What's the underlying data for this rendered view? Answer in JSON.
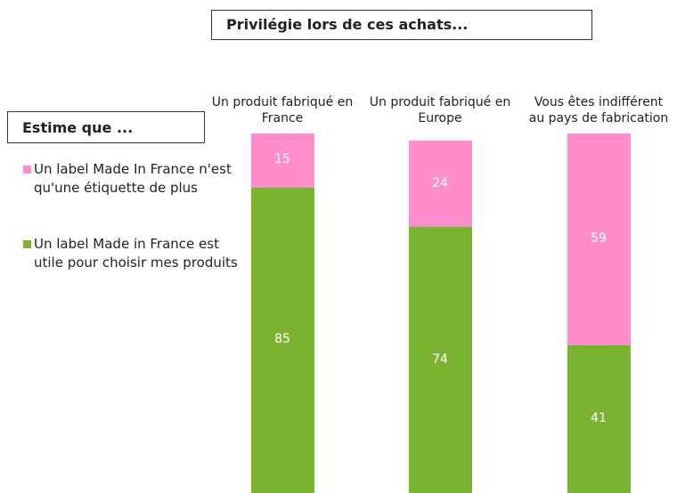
{
  "chart_data": {
    "type": "stacked_bar",
    "title": "Privilégie lors de ces achats...",
    "legend_title": "Estime que ...",
    "categories": [
      "Un produit fabriqué en France",
      "Un produit fabriqué en Europe",
      "Vous êtes indifférent au pays de fabrication"
    ],
    "series": [
      {
        "name": "Un label Made In France n'est qu'une étiquette de plus",
        "color": "#ff8fcc",
        "values": [
          15,
          24,
          59
        ]
      },
      {
        "name": "Un label Made in France est utile pour choisir mes produits",
        "color": "#7cb232",
        "values": [
          85,
          74,
          41
        ]
      }
    ],
    "ylim": [
      0,
      100
    ],
    "legend": "left",
    "data_labels": true
  }
}
